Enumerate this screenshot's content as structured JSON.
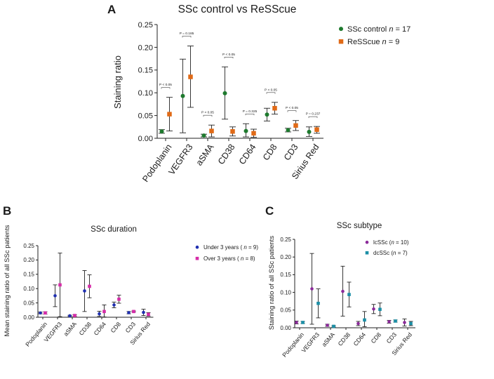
{
  "chart_data": [
    {
      "panel": "A",
      "type": "scatter",
      "title": "SSc control vs  ReSScue",
      "xlabel": "",
      "ylabel": "Staining ratio",
      "ylim": [
        0,
        0.25
      ],
      "yticks": [
        "0.00",
        "0.05",
        "0.10",
        "0.15",
        "0.20",
        "0.25"
      ],
      "categories": [
        "Podoplanin",
        "VEGFR3",
        "aSMA",
        "CD38",
        "CD64",
        "CD8",
        "CD3",
        "Sirius Red"
      ],
      "series": [
        {
          "name": "SSc control",
          "n_label": "n",
          "n_value": "= 17",
          "color": "#1e7a2e",
          "marker": "circle",
          "values": [
            0.015,
            0.093,
            0.006,
            0.099,
            0.016,
            0.052,
            0.018,
            0.014
          ],
          "err_low": [
            0.011,
            0.012,
            0.003,
            0.042,
            0.003,
            0.038,
            0.014,
            0.004
          ],
          "err_high": [
            0.019,
            0.174,
            0.009,
            0.157,
            0.032,
            0.066,
            0.022,
            0.025
          ]
        },
        {
          "name": "ReSScue",
          "n_label": "n",
          "n_value": "= 9",
          "color": "#e06a17",
          "marker": "square",
          "values": [
            0.053,
            0.135,
            0.016,
            0.015,
            0.011,
            0.066,
            0.028,
            0.019
          ],
          "err_low": [
            0.016,
            0.068,
            0.003,
            0.005,
            0.002,
            0.053,
            0.017,
            0.011
          ],
          "err_high": [
            0.09,
            0.203,
            0.029,
            0.025,
            0.02,
            0.079,
            0.039,
            0.026
          ]
        }
      ],
      "annotations": [
        "P < 0.05",
        "P = 0.185",
        "P < 0.05",
        "P < 0.05",
        "P = 0.325",
        "P < 0.05",
        "P < 0.05",
        "P = 0.237"
      ],
      "legend": "right"
    },
    {
      "panel": "B",
      "type": "scatter",
      "title": "SSc duration",
      "xlabel": "",
      "ylabel": "Mean staining ratio of all SSc patients",
      "ylim": [
        0,
        0.25
      ],
      "yticks": [
        "0.00",
        "0.05",
        "0.10",
        "0.15",
        "0.20",
        "0.25"
      ],
      "categories": [
        "Podoplanin",
        "VEGFR3",
        "aSMA",
        "CD38",
        "CD64",
        "CD8",
        "CD3",
        "Sirius Red"
      ],
      "series": [
        {
          "name": "Under 3 years (",
          "n_label": "n",
          "n_value": " = 9)",
          "color": "#1f2fb0",
          "marker": "circle",
          "values": [
            0.015,
            0.075,
            0.005,
            0.092,
            0.012,
            0.043,
            0.016,
            0.017
          ],
          "err_low": [
            0.012,
            0.037,
            0.003,
            0.02,
            0.003,
            0.033,
            0.012,
            0.006
          ],
          "err_high": [
            0.018,
            0.113,
            0.007,
            0.163,
            0.021,
            0.053,
            0.02,
            0.028
          ]
        },
        {
          "name": "Over 3 years (",
          "n_label": "n",
          "n_value": " = 8)",
          "color": "#d62ca8",
          "marker": "square",
          "values": [
            0.015,
            0.113,
            0.006,
            0.108,
            0.02,
            0.063,
            0.02,
            0.01
          ],
          "err_low": [
            0.011,
            0.002,
            0.003,
            0.068,
            0.001,
            0.049,
            0.018,
            0.004
          ],
          "err_high": [
            0.019,
            0.224,
            0.009,
            0.148,
            0.043,
            0.077,
            0.022,
            0.016
          ]
        }
      ],
      "legend": "right"
    },
    {
      "panel": "C",
      "type": "scatter",
      "title": "SSc subtype",
      "xlabel": "",
      "ylabel": "Staining ratio of all SSc patients",
      "ylim": [
        0,
        0.25
      ],
      "yticks": [
        "0.00",
        "0.05",
        "0.10",
        "0.15",
        "0.20",
        "0.25"
      ],
      "categories": [
        "Podoplanin",
        "VEGFR3",
        "aSMA",
        "CD38",
        "CD64",
        "CD8",
        "CD3",
        "Sirius Red"
      ],
      "series": [
        {
          "name": "lcSSc",
          "n_label": "n",
          "n_value": " = 10)",
          "n_prefix": "(",
          "color": "#8b2a9a",
          "marker": "circle",
          "values": [
            0.015,
            0.11,
            0.007,
            0.103,
            0.012,
            0.053,
            0.017,
            0.015
          ],
          "err_low": [
            0.011,
            0.01,
            0.004,
            0.033,
            0.006,
            0.04,
            0.013,
            0.005
          ],
          "err_high": [
            0.019,
            0.21,
            0.01,
            0.174,
            0.018,
            0.066,
            0.021,
            0.025
          ]
        },
        {
          "name": "dcSSc",
          "n_label": "n",
          "n_value": " = 7)",
          "n_prefix": "(",
          "color": "#1b8fa6",
          "marker": "square",
          "values": [
            0.015,
            0.069,
            0.004,
            0.094,
            0.022,
            0.052,
            0.019,
            0.012
          ],
          "err_low": [
            0.012,
            0.028,
            0.002,
            0.059,
            0.003,
            0.034,
            0.016,
            0.006
          ],
          "err_high": [
            0.018,
            0.11,
            0.006,
            0.129,
            0.046,
            0.07,
            0.022,
            0.018
          ]
        }
      ],
      "legend": "right"
    }
  ]
}
